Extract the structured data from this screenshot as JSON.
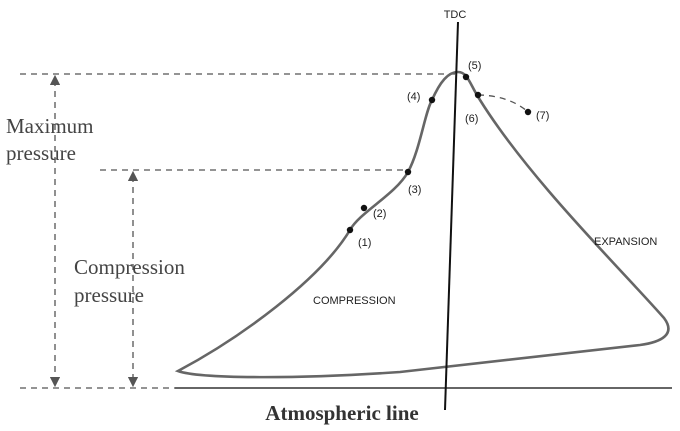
{
  "labels": {
    "tdc": "TDC",
    "maximum_pressure": [
      "Maximum",
      "pressure"
    ],
    "compression_pressure": [
      "Compression",
      "pressure"
    ],
    "atmospheric_line": "Atmospheric line",
    "compression": "COMPRESSION",
    "expansion": "EXPANSION"
  },
  "points": [
    "(1)",
    "(2)",
    "(3)",
    "(4)",
    "(5)",
    "(6)",
    "(7)"
  ]
}
